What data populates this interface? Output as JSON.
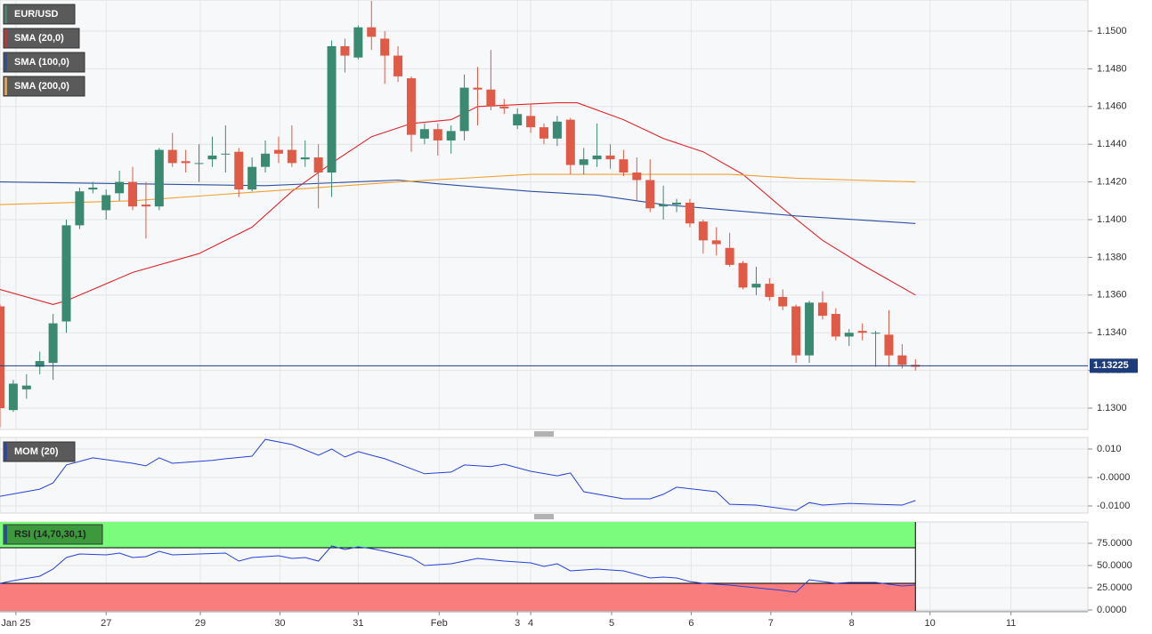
{
  "chart_data": [
    {
      "type": "candlestick",
      "title": "EUR/USD",
      "up_color": "#3a8a72",
      "down_color": "#e05a48",
      "xlim": [
        0,
        82
      ],
      "xticks": [
        {
          "value": 1.2,
          "label": "Jan 25"
        },
        {
          "value": 8,
          "label": "27"
        },
        {
          "value": 15.1,
          "label": "29"
        },
        {
          "value": 21.1,
          "label": "30"
        },
        {
          "value": 27,
          "label": "31"
        },
        {
          "value": 33.1,
          "label": "Feb"
        },
        {
          "value": 39,
          "label": "3"
        },
        {
          "value": 40,
          "label": "4"
        },
        {
          "value": 46.1,
          "label": "5"
        },
        {
          "value": 52.1,
          "label": "6"
        },
        {
          "value": 58.1,
          "label": "7"
        },
        {
          "value": 64.2,
          "label": "8"
        },
        {
          "value": 70.1,
          "label": "10"
        },
        {
          "value": 76.2,
          "label": "11"
        }
      ],
      "ylim": [
        1.12887,
        1.15165
      ],
      "yticks": [
        {
          "value": 1.13,
          "label": "1.1300"
        },
        {
          "value": 1.132,
          "label": "1.1320"
        },
        {
          "value": 1.134,
          "label": "1.1340"
        },
        {
          "value": 1.136,
          "label": "1.1360"
        },
        {
          "value": 1.138,
          "label": "1.1380"
        },
        {
          "value": 1.14,
          "label": "1.1400"
        },
        {
          "value": 1.142,
          "label": "1.1420"
        },
        {
          "value": 1.144,
          "label": "1.1440"
        },
        {
          "value": 1.146,
          "label": "1.1460"
        },
        {
          "value": 1.148,
          "label": "1.1480"
        },
        {
          "value": 1.15,
          "label": "1.1500"
        }
      ],
      "grid": true,
      "open": [
        1.1354,
        1.1299,
        1.131,
        1.1322,
        1.1324,
        1.1346,
        1.1397,
        1.1416,
        1.1405,
        1.1414,
        1.142,
        1.1408,
        1.1407,
        1.1437,
        1.1431,
        1.143,
        1.1432,
        1.1435,
        1.1436,
        1.1416,
        1.1428,
        1.1437,
        1.1437,
        1.1432,
        1.1433,
        1.1425,
        1.1492,
        1.1486,
        1.1502,
        1.1496,
        1.1487,
        1.1475,
        1.1443,
        1.1448,
        1.1442,
        1.1447,
        1.147,
        1.1469,
        1.146,
        1.145,
        1.1455,
        1.1449,
        1.1443,
        1.1453,
        1.1429,
        1.1432,
        1.1434,
        1.1432,
        1.1425,
        1.1421,
        1.1407,
        1.1408,
        1.1409,
        1.1399,
        1.1389,
        1.1385,
        1.1377,
        1.1364,
        1.1366,
        1.1359,
        1.1354,
        1.1328,
        1.1356,
        1.135,
        1.1338,
        1.1341,
        1.134,
        1.1339,
        1.1328,
        1.1323
      ],
      "high": [
        1.1355,
        1.1315,
        1.1318,
        1.133,
        1.135,
        1.14,
        1.1417,
        1.142,
        1.1416,
        1.1426,
        1.1428,
        1.142,
        1.1438,
        1.1446,
        1.1437,
        1.144,
        1.1444,
        1.145,
        1.1438,
        1.1433,
        1.1442,
        1.1444,
        1.145,
        1.1442,
        1.144,
        1.1495,
        1.1496,
        1.1503,
        1.1516,
        1.15,
        1.1492,
        1.1476,
        1.1451,
        1.1451,
        1.145,
        1.1477,
        1.1481,
        1.149,
        1.1464,
        1.1459,
        1.1461,
        1.1451,
        1.1455,
        1.1454,
        1.1438,
        1.1451,
        1.144,
        1.1437,
        1.1433,
        1.1432,
        1.1418,
        1.1411,
        1.1411,
        1.14,
        1.1396,
        1.1393,
        1.1378,
        1.1375,
        1.1369,
        1.1363,
        1.1355,
        1.1357,
        1.1362,
        1.1353,
        1.1342,
        1.1345,
        1.1341,
        1.1352,
        1.1334,
        1.1326
      ],
      "low": [
        1.129,
        1.1298,
        1.1305,
        1.1318,
        1.1315,
        1.134,
        1.1395,
        1.1414,
        1.14,
        1.141,
        1.1405,
        1.139,
        1.1405,
        1.1428,
        1.1425,
        1.142,
        1.1428,
        1.1425,
        1.1412,
        1.1415,
        1.1425,
        1.143,
        1.1428,
        1.1428,
        1.1406,
        1.1412,
        1.1478,
        1.1485,
        1.149,
        1.1472,
        1.1473,
        1.1436,
        1.144,
        1.1434,
        1.1435,
        1.1442,
        1.145,
        1.1458,
        1.1456,
        1.1448,
        1.1446,
        1.144,
        1.1439,
        1.1424,
        1.1424,
        1.1428,
        1.1427,
        1.1423,
        1.141,
        1.1404,
        1.14,
        1.1404,
        1.1396,
        1.1382,
        1.1381,
        1.1375,
        1.1363,
        1.136,
        1.1357,
        1.1352,
        1.1324,
        1.1324,
        1.1347,
        1.1336,
        1.1333,
        1.1336,
        1.1322,
        1.1322,
        1.1321,
        1.132
      ],
      "close": [
        1.13,
        1.1313,
        1.1312,
        1.1325,
        1.1345,
        1.1397,
        1.1415,
        1.1417,
        1.1413,
        1.142,
        1.1407,
        1.1407,
        1.1437,
        1.143,
        1.143,
        1.143,
        1.1434,
        1.1435,
        1.1416,
        1.1428,
        1.1435,
        1.1435,
        1.143,
        1.1433,
        1.1425,
        1.1492,
        1.1487,
        1.1502,
        1.1497,
        1.1487,
        1.1476,
        1.1445,
        1.1448,
        1.1442,
        1.1447,
        1.147,
        1.1469,
        1.146,
        1.1459,
        1.1456,
        1.1449,
        1.1443,
        1.1452,
        1.1429,
        1.1432,
        1.1434,
        1.1432,
        1.1425,
        1.1421,
        1.1406,
        1.1408,
        1.1409,
        1.1398,
        1.1389,
        1.1387,
        1.1376,
        1.1364,
        1.1366,
        1.1359,
        1.1354,
        1.1328,
        1.1356,
        1.1349,
        1.1338,
        1.134,
        1.134,
        1.134,
        1.1328,
        1.1323,
        1.1322
      ],
      "series": [
        {
          "name": "SMA (20,0)",
          "color": "#e0252b",
          "x": [
            0,
            4,
            5,
            10,
            15,
            19,
            22,
            25,
            28,
            31,
            34,
            36,
            39,
            42,
            43.5,
            47,
            50,
            53,
            56,
            59,
            62,
            65,
            69
          ],
          "values": [
            1.1363,
            1.1355,
            1.1357,
            1.1372,
            1.1382,
            1.1396,
            1.1415,
            1.143,
            1.1444,
            1.1451,
            1.1453,
            1.146,
            1.1461,
            1.1462,
            1.1462,
            1.1453,
            1.1443,
            1.1436,
            1.1424,
            1.1406,
            1.1389,
            1.1376,
            1.136
          ]
        },
        {
          "name": "SMA (100,0)",
          "color": "#2a4fa0",
          "x": [
            0,
            10,
            20,
            30,
            33,
            40,
            45,
            50,
            55,
            60,
            69
          ],
          "values": [
            1.142,
            1.1419,
            1.1418,
            1.1421,
            1.1419,
            1.1415,
            1.1413,
            1.1408,
            1.1405,
            1.1402,
            1.1398
          ]
        },
        {
          "name": "SMA (200,0)",
          "color": "#f0a030",
          "x": [
            0,
            10,
            20,
            30,
            40,
            50,
            55,
            60,
            69
          ],
          "values": [
            1.1408,
            1.141,
            1.1415,
            1.142,
            1.1424,
            1.1424,
            1.1424,
            1.1422,
            1.142
          ]
        }
      ],
      "last_price": 1.13225,
      "last_price_color": "#1c3c7c"
    },
    {
      "type": "line",
      "title": "MOM (20)",
      "color": "#2442d8",
      "ylim": [
        -0.0125,
        0.01406
      ],
      "yticks": [
        {
          "value": 0.01,
          "label": "0.010"
        },
        {
          "value": 0,
          "label": "-0.0000"
        },
        {
          "value": -0.01,
          "label": "-0.0100"
        }
      ],
      "x": [
        0,
        3,
        4,
        5,
        7,
        10,
        11,
        12,
        13,
        16,
        17,
        19,
        20,
        22,
        24,
        25,
        26,
        27,
        28,
        29,
        32,
        34,
        35,
        37,
        38,
        40,
        42,
        43,
        44,
        47,
        49,
        50,
        51,
        54,
        55,
        57,
        60,
        61,
        62,
        64,
        66,
        68,
        69
      ],
      "values": [
        -0.0066,
        -0.0041,
        -0.0019,
        0.0044,
        0.0069,
        0.005,
        0.0041,
        0.0069,
        0.005,
        0.006,
        0.0066,
        0.0075,
        0.0134,
        0.0116,
        0.0078,
        0.01,
        0.0072,
        0.0091,
        0.0078,
        0.0066,
        0.0013,
        0.0019,
        0.0044,
        0.0038,
        0.0047,
        0.0022,
        0.0006,
        0.0016,
        -0.005,
        -0.0075,
        -0.0075,
        -0.0059,
        -0.0034,
        -0.005,
        -0.0094,
        -0.0097,
        -0.0116,
        -0.0088,
        -0.0097,
        -0.0091,
        -0.0094,
        -0.0097,
        -0.0081
      ]
    },
    {
      "type": "line",
      "title": "RSI (14,70,30,1)",
      "color": "#2442d8",
      "upper": 70,
      "lower": 30,
      "upper_color": "#7cfc7c",
      "lower_color": "#fa7d7d",
      "ylim": [
        -1,
        99
      ],
      "yticks": [
        {
          "value": 0,
          "label": "0.0000"
        },
        {
          "value": 25,
          "label": "25.0000"
        },
        {
          "value": 50,
          "label": "50.0000"
        },
        {
          "value": 75,
          "label": "75.0000"
        }
      ],
      "x": [
        0,
        1,
        3,
        4,
        5,
        6,
        8,
        9,
        10,
        11,
        12,
        13,
        17,
        18,
        19,
        21,
        22,
        23,
        24,
        25,
        26,
        27,
        28,
        29,
        31,
        32,
        34,
        35,
        36,
        38,
        40,
        41,
        42,
        43,
        45,
        47,
        49,
        50,
        51,
        52,
        53,
        55,
        57,
        59,
        60,
        61,
        62,
        63,
        64,
        66,
        68,
        69
      ],
      "values": [
        30,
        33,
        38,
        46,
        59,
        63,
        62,
        64,
        59,
        60,
        66,
        62,
        64,
        55,
        59,
        61,
        58,
        59,
        55,
        72,
        68,
        71,
        69,
        66,
        59,
        50,
        52,
        55,
        58,
        55,
        53,
        49,
        52,
        44,
        46,
        44,
        36,
        37,
        36,
        32,
        30,
        28,
        25,
        22,
        20,
        34,
        32,
        30,
        31,
        31,
        27,
        28
      ]
    }
  ]
}
